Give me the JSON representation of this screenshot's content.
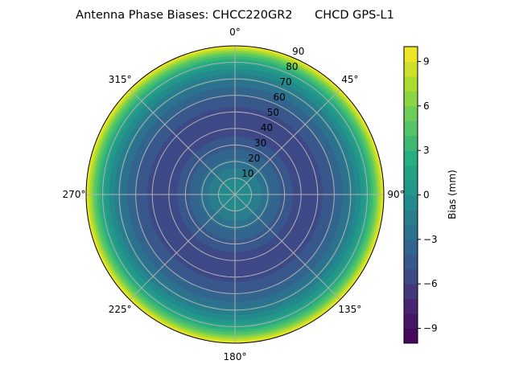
{
  "chart_data": {
    "type": "heatmap",
    "subtype": "polar-contourf",
    "title": "Antenna Phase Biases: CHCC220GR2      CHCD GPS-L1",
    "colormap": "viridis",
    "theta_direction": "clockwise",
    "theta_zero": "top",
    "theta_tick_labels": [
      "0°",
      "45°",
      "90°",
      "135°",
      "180°",
      "225°",
      "270°",
      "315°"
    ],
    "theta_tick_values": [
      0,
      45,
      90,
      135,
      180,
      225,
      270,
      315
    ],
    "r_tick_labels": [
      "10",
      "20",
      "30",
      "40",
      "50",
      "60",
      "70",
      "80",
      "90"
    ],
    "r_tick_values": [
      10,
      20,
      30,
      40,
      50,
      60,
      70,
      80,
      90
    ],
    "rlim": [
      0,
      90
    ],
    "grid": true,
    "profile": {
      "zenith": [
        0,
        5,
        10,
        15,
        20,
        25,
        30,
        35,
        40,
        45,
        50,
        55,
        60,
        65,
        70,
        75,
        80,
        85,
        90
      ],
      "bias": [
        0,
        -0.3,
        -1,
        -1.8,
        -2.7,
        -3.6,
        -4.4,
        -5,
        -5.4,
        -5.5,
        -5.3,
        -4.8,
        -4,
        -3,
        -1.8,
        -0.5,
        1.5,
        5,
        10
      ]
    },
    "levels_step": 1,
    "colorbar": {
      "label": "Bias (mm)",
      "range": [
        -10,
        10
      ],
      "tick_values": [
        -9,
        -6,
        -3,
        0,
        3,
        6,
        9
      ],
      "tick_labels": [
        "−9",
        "−6",
        "−3",
        "0",
        "3",
        "6",
        "9"
      ]
    }
  }
}
